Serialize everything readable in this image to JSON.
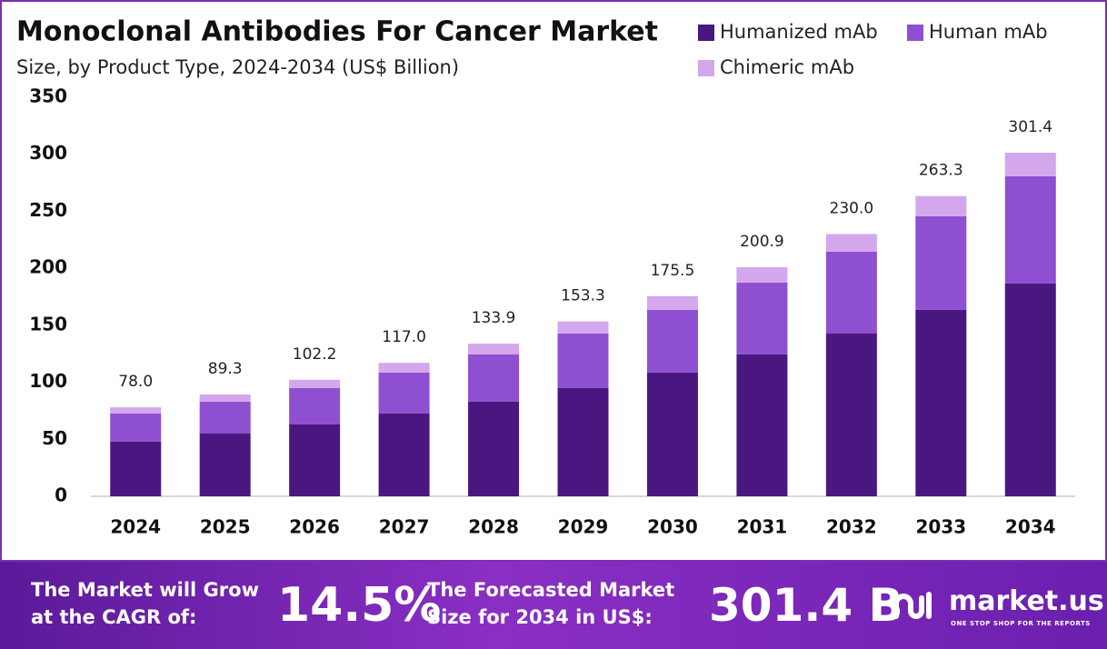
{
  "chart_data": {
    "type": "stacked-bar",
    "title": "Monoclonal Antibodies For Cancer Market",
    "subtitle": "Size, by Product Type, 2024-2034 (US$ Billion)",
    "categories": [
      "2024",
      "2025",
      "2026",
      "2027",
      "2028",
      "2029",
      "2030",
      "2031",
      "2032",
      "2033",
      "2034"
    ],
    "series": [
      {
        "name": "Humanized mAb",
        "color": "#4a1780",
        "values": [
          48,
          55,
          63,
          72.6,
          83,
          94.9,
          108.5,
          124.4,
          142.7,
          163.5,
          186.6
        ]
      },
      {
        "name": "Human mAb",
        "color": "#8e4fd0",
        "values": [
          24.7,
          28,
          32,
          35.9,
          41.4,
          47.8,
          55,
          63,
          71.8,
          82.1,
          94.1
        ]
      },
      {
        "name": "Chimeric mAb",
        "color": "#d4a6ec",
        "values": [
          5.3,
          6.3,
          7.2,
          8.5,
          9.5,
          10.6,
          12,
          13.5,
          15.5,
          17.7,
          20.7
        ]
      }
    ],
    "totals": {
      "values": [
        78,
        89.3,
        102.2,
        117,
        133.9,
        153.3,
        175.5,
        200.9,
        230,
        263.3,
        301.4
      ],
      "value_labels": [
        "78.0",
        "89.3",
        "102.2",
        "117.0",
        "133.9",
        "153.3",
        "175.5",
        "200.9",
        "230.0",
        "263.3",
        "301.4"
      ]
    },
    "ylim": [
      0,
      350
    ],
    "yticks": [
      0,
      50,
      100,
      150,
      200,
      250,
      300,
      350
    ],
    "grid": false
  },
  "footer": {
    "cagr_text": [
      "The Market will Grow",
      "at the CAGR of:"
    ],
    "cagr": "14.5%",
    "forecast_text": [
      "The Forecasted Market",
      "Size for 2034 in US$:"
    ],
    "forecast_value": "301.4 B",
    "logo": "market.us",
    "tagline": "ONE STOP SHOP FOR THE REPORTS"
  }
}
